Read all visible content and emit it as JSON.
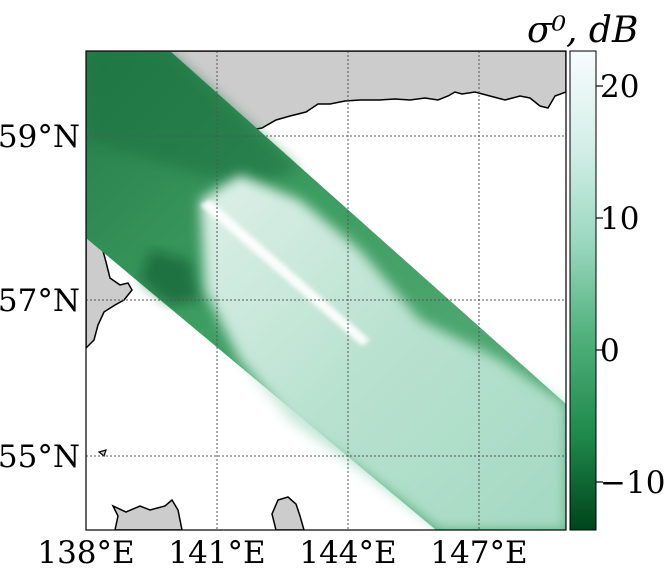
{
  "map": {
    "x_axis_labels": [
      {
        "value": 138,
        "label": "138°E"
      },
      {
        "value": 141,
        "label": "141°E"
      },
      {
        "value": 144,
        "label": "144°E"
      },
      {
        "value": 147,
        "label": "147°E"
      }
    ],
    "y_axis_labels": [
      {
        "value": 59,
        "label": "59°N"
      },
      {
        "value": 57,
        "label": "57°N"
      },
      {
        "value": 55,
        "label": "55°N"
      }
    ],
    "lon_range": [
      138,
      149
    ],
    "lat_range": [
      54,
      60
    ],
    "gridlines": "on",
    "land_color": "#cccccc",
    "water_color": "#ffffff"
  },
  "colorbar": {
    "title": "σ⁰, dB",
    "ticks": [
      {
        "value": 20,
        "label": "20"
      },
      {
        "value": 10,
        "label": "10"
      },
      {
        "value": 0,
        "label": "0"
      },
      {
        "value": -10,
        "label": "−10"
      }
    ],
    "range": [
      -14,
      22
    ],
    "colors": [
      "#00441b",
      "#1b7d44",
      "#46a868",
      "#8bd0b0",
      "#c8ece0",
      "#f7fcfd"
    ]
  }
}
